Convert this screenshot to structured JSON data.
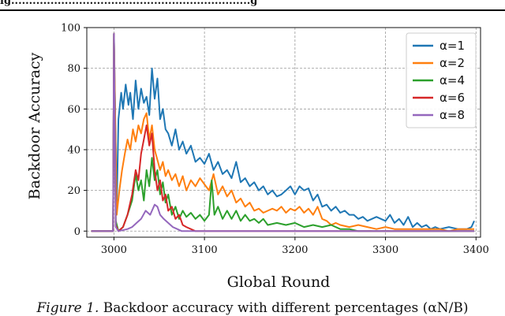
{
  "figure": {
    "top_caption_fragment": "ig...................................................................g",
    "caption_label": "Figure 1.",
    "caption_text": "Backdoor accuracy with different percentages (αN/B)"
  },
  "chart_data": {
    "type": "line",
    "xlabel": "Global Round",
    "ylabel": "Backdoor Accuracy",
    "xlim": [
      2970,
      3405
    ],
    "ylim": [
      -3,
      100
    ],
    "xticks": [
      3000,
      3100,
      3200,
      3300,
      3400
    ],
    "yticks": [
      0,
      20,
      40,
      60,
      80,
      100
    ],
    "grid": true,
    "legend_position": "top-right",
    "series": [
      {
        "name": "α=1",
        "color": "#1f77b4",
        "points": [
          [
            2975,
            0
          ],
          [
            2999,
            0
          ],
          [
            3000,
            97
          ],
          [
            3003,
            10
          ],
          [
            3005,
            55
          ],
          [
            3008,
            68
          ],
          [
            3010,
            60
          ],
          [
            3013,
            72
          ],
          [
            3016,
            62
          ],
          [
            3018,
            68
          ],
          [
            3021,
            55
          ],
          [
            3024,
            74
          ],
          [
            3027,
            60
          ],
          [
            3030,
            70
          ],
          [
            3033,
            63
          ],
          [
            3036,
            66
          ],
          [
            3039,
            57
          ],
          [
            3042,
            80
          ],
          [
            3045,
            65
          ],
          [
            3048,
            75
          ],
          [
            3051,
            55
          ],
          [
            3054,
            60
          ],
          [
            3057,
            50
          ],
          [
            3060,
            48
          ],
          [
            3064,
            42
          ],
          [
            3068,
            50
          ],
          [
            3072,
            40
          ],
          [
            3076,
            44
          ],
          [
            3080,
            38
          ],
          [
            3085,
            42
          ],
          [
            3090,
            34
          ],
          [
            3095,
            36
          ],
          [
            3100,
            33
          ],
          [
            3105,
            38
          ],
          [
            3110,
            30
          ],
          [
            3115,
            34
          ],
          [
            3120,
            28
          ],
          [
            3125,
            30
          ],
          [
            3130,
            26
          ],
          [
            3135,
            34
          ],
          [
            3140,
            24
          ],
          [
            3145,
            26
          ],
          [
            3150,
            22
          ],
          [
            3155,
            24
          ],
          [
            3160,
            20
          ],
          [
            3165,
            22
          ],
          [
            3170,
            18
          ],
          [
            3175,
            20
          ],
          [
            3180,
            17
          ],
          [
            3185,
            18
          ],
          [
            3190,
            20
          ],
          [
            3195,
            22
          ],
          [
            3200,
            18
          ],
          [
            3205,
            22
          ],
          [
            3210,
            20
          ],
          [
            3215,
            21
          ],
          [
            3220,
            15
          ],
          [
            3225,
            18
          ],
          [
            3230,
            12
          ],
          [
            3235,
            13
          ],
          [
            3240,
            10
          ],
          [
            3245,
            12
          ],
          [
            3250,
            9
          ],
          [
            3255,
            10
          ],
          [
            3260,
            8
          ],
          [
            3265,
            8
          ],
          [
            3270,
            6
          ],
          [
            3275,
            7
          ],
          [
            3280,
            5
          ],
          [
            3285,
            6
          ],
          [
            3290,
            7
          ],
          [
            3295,
            6
          ],
          [
            3300,
            5
          ],
          [
            3305,
            8
          ],
          [
            3310,
            4
          ],
          [
            3315,
            6
          ],
          [
            3320,
            3
          ],
          [
            3325,
            7
          ],
          [
            3330,
            2
          ],
          [
            3335,
            4
          ],
          [
            3340,
            2
          ],
          [
            3345,
            3
          ],
          [
            3350,
            1
          ],
          [
            3355,
            2
          ],
          [
            3360,
            1
          ],
          [
            3370,
            2
          ],
          [
            3380,
            1
          ],
          [
            3390,
            1
          ],
          [
            3395,
            2
          ],
          [
            3398,
            5
          ]
        ]
      },
      {
        "name": "α=2",
        "color": "#ff7f0e",
        "points": [
          [
            2975,
            0
          ],
          [
            2999,
            0
          ],
          [
            3000,
            97
          ],
          [
            3003,
            8
          ],
          [
            3006,
            20
          ],
          [
            3009,
            30
          ],
          [
            3012,
            38
          ],
          [
            3015,
            45
          ],
          [
            3018,
            40
          ],
          [
            3021,
            50
          ],
          [
            3024,
            44
          ],
          [
            3027,
            52
          ],
          [
            3030,
            48
          ],
          [
            3033,
            55
          ],
          [
            3036,
            58
          ],
          [
            3039,
            45
          ],
          [
            3042,
            52
          ],
          [
            3045,
            40
          ],
          [
            3048,
            35
          ],
          [
            3051,
            30
          ],
          [
            3054,
            34
          ],
          [
            3057,
            27
          ],
          [
            3060,
            30
          ],
          [
            3064,
            25
          ],
          [
            3068,
            28
          ],
          [
            3072,
            22
          ],
          [
            3076,
            27
          ],
          [
            3080,
            20
          ],
          [
            3085,
            25
          ],
          [
            3090,
            22
          ],
          [
            3095,
            26
          ],
          [
            3100,
            23
          ],
          [
            3105,
            20
          ],
          [
            3110,
            28
          ],
          [
            3115,
            18
          ],
          [
            3120,
            22
          ],
          [
            3125,
            17
          ],
          [
            3130,
            20
          ],
          [
            3135,
            14
          ],
          [
            3140,
            16
          ],
          [
            3145,
            12
          ],
          [
            3150,
            14
          ],
          [
            3155,
            10
          ],
          [
            3160,
            11
          ],
          [
            3165,
            9
          ],
          [
            3170,
            10
          ],
          [
            3175,
            11
          ],
          [
            3180,
            10
          ],
          [
            3185,
            12
          ],
          [
            3190,
            9
          ],
          [
            3195,
            11
          ],
          [
            3200,
            10
          ],
          [
            3205,
            12
          ],
          [
            3210,
            9
          ],
          [
            3215,
            11
          ],
          [
            3220,
            8
          ],
          [
            3225,
            12
          ],
          [
            3230,
            6
          ],
          [
            3235,
            5
          ],
          [
            3240,
            3
          ],
          [
            3245,
            4
          ],
          [
            3250,
            3
          ],
          [
            3260,
            2
          ],
          [
            3270,
            3
          ],
          [
            3280,
            2
          ],
          [
            3290,
            1
          ],
          [
            3300,
            2
          ],
          [
            3310,
            1
          ],
          [
            3320,
            1
          ],
          [
            3330,
            1
          ],
          [
            3340,
            1
          ],
          [
            3350,
            1
          ],
          [
            3360,
            1
          ],
          [
            3370,
            0
          ],
          [
            3380,
            1
          ],
          [
            3398,
            1
          ]
        ]
      },
      {
        "name": "α=4",
        "color": "#2ca02c",
        "points": [
          [
            2975,
            0
          ],
          [
            2999,
            0
          ],
          [
            3000,
            97
          ],
          [
            3002,
            5
          ],
          [
            3005,
            0
          ],
          [
            3010,
            2
          ],
          [
            3015,
            8
          ],
          [
            3020,
            15
          ],
          [
            3024,
            28
          ],
          [
            3027,
            20
          ],
          [
            3030,
            25
          ],
          [
            3033,
            15
          ],
          [
            3036,
            30
          ],
          [
            3039,
            22
          ],
          [
            3042,
            36
          ],
          [
            3045,
            25
          ],
          [
            3048,
            30
          ],
          [
            3051,
            18
          ],
          [
            3054,
            24
          ],
          [
            3057,
            14
          ],
          [
            3060,
            18
          ],
          [
            3064,
            8
          ],
          [
            3068,
            12
          ],
          [
            3072,
            6
          ],
          [
            3076,
            10
          ],
          [
            3080,
            7
          ],
          [
            3085,
            9
          ],
          [
            3090,
            6
          ],
          [
            3095,
            8
          ],
          [
            3100,
            5
          ],
          [
            3105,
            8
          ],
          [
            3108,
            25
          ],
          [
            3111,
            8
          ],
          [
            3115,
            12
          ],
          [
            3120,
            6
          ],
          [
            3125,
            10
          ],
          [
            3130,
            6
          ],
          [
            3135,
            10
          ],
          [
            3140,
            5
          ],
          [
            3145,
            8
          ],
          [
            3150,
            5
          ],
          [
            3155,
            6
          ],
          [
            3160,
            4
          ],
          [
            3165,
            6
          ],
          [
            3170,
            3
          ],
          [
            3180,
            4
          ],
          [
            3190,
            3
          ],
          [
            3200,
            4
          ],
          [
            3210,
            2
          ],
          [
            3220,
            3
          ],
          [
            3230,
            2
          ],
          [
            3240,
            3
          ],
          [
            3250,
            1
          ],
          [
            3260,
            1
          ],
          [
            3270,
            0
          ],
          [
            3398,
            0
          ]
        ]
      },
      {
        "name": "α=6",
        "color": "#d62728",
        "points": [
          [
            2975,
            0
          ],
          [
            2999,
            0
          ],
          [
            3000,
            97
          ],
          [
            3002,
            3
          ],
          [
            3005,
            0
          ],
          [
            3010,
            2
          ],
          [
            3015,
            8
          ],
          [
            3020,
            18
          ],
          [
            3024,
            30
          ],
          [
            3027,
            25
          ],
          [
            3030,
            38
          ],
          [
            3033,
            45
          ],
          [
            3036,
            52
          ],
          [
            3039,
            42
          ],
          [
            3042,
            48
          ],
          [
            3045,
            30
          ],
          [
            3048,
            20
          ],
          [
            3051,
            25
          ],
          [
            3054,
            15
          ],
          [
            3057,
            18
          ],
          [
            3060,
            10
          ],
          [
            3064,
            12
          ],
          [
            3068,
            6
          ],
          [
            3072,
            8
          ],
          [
            3076,
            3
          ],
          [
            3080,
            2
          ],
          [
            3085,
            1
          ],
          [
            3090,
            0
          ],
          [
            3095,
            0
          ],
          [
            3398,
            0
          ]
        ]
      },
      {
        "name": "α=8",
        "color": "#9467bd",
        "points": [
          [
            2975,
            0
          ],
          [
            2999,
            0
          ],
          [
            3000,
            97
          ],
          [
            3002,
            2
          ],
          [
            3005,
            0
          ],
          [
            3015,
            1
          ],
          [
            3020,
            2
          ],
          [
            3025,
            4
          ],
          [
            3030,
            6
          ],
          [
            3035,
            10
          ],
          [
            3040,
            8
          ],
          [
            3045,
            13
          ],
          [
            3048,
            12
          ],
          [
            3051,
            8
          ],
          [
            3055,
            6
          ],
          [
            3060,
            4
          ],
          [
            3065,
            2
          ],
          [
            3070,
            1
          ],
          [
            3075,
            0
          ],
          [
            3398,
            0
          ]
        ]
      }
    ]
  }
}
